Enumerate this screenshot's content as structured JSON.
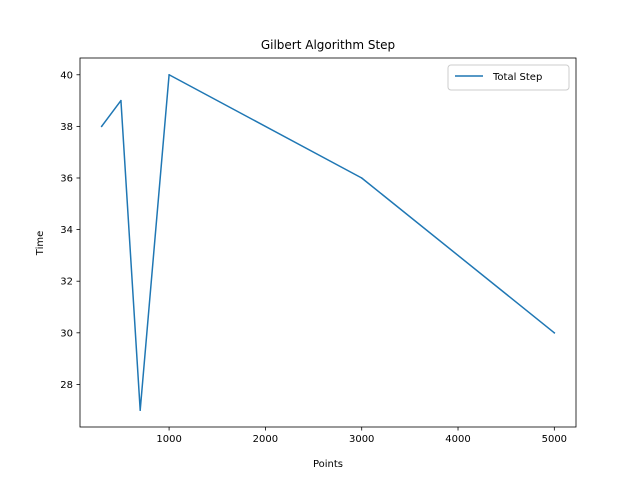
{
  "chart_data": {
    "type": "line",
    "title": "Gilbert Algorithm Step",
    "xlabel": "Points",
    "ylabel": "Time",
    "xlim": [
      75,
      5225
    ],
    "ylim": [
      26.35,
      40.65
    ],
    "xticks": [
      1000,
      2000,
      3000,
      4000,
      5000
    ],
    "yticks": [
      28,
      30,
      32,
      34,
      36,
      38,
      40
    ],
    "grid": false,
    "legend_position": "top-right",
    "series": [
      {
        "name": "Total Step",
        "color": "#1f77b4",
        "x": [
          300,
          500,
          700,
          1000,
          3000,
          5000
        ],
        "y": [
          38,
          39,
          27,
          40,
          36,
          30
        ]
      }
    ]
  }
}
